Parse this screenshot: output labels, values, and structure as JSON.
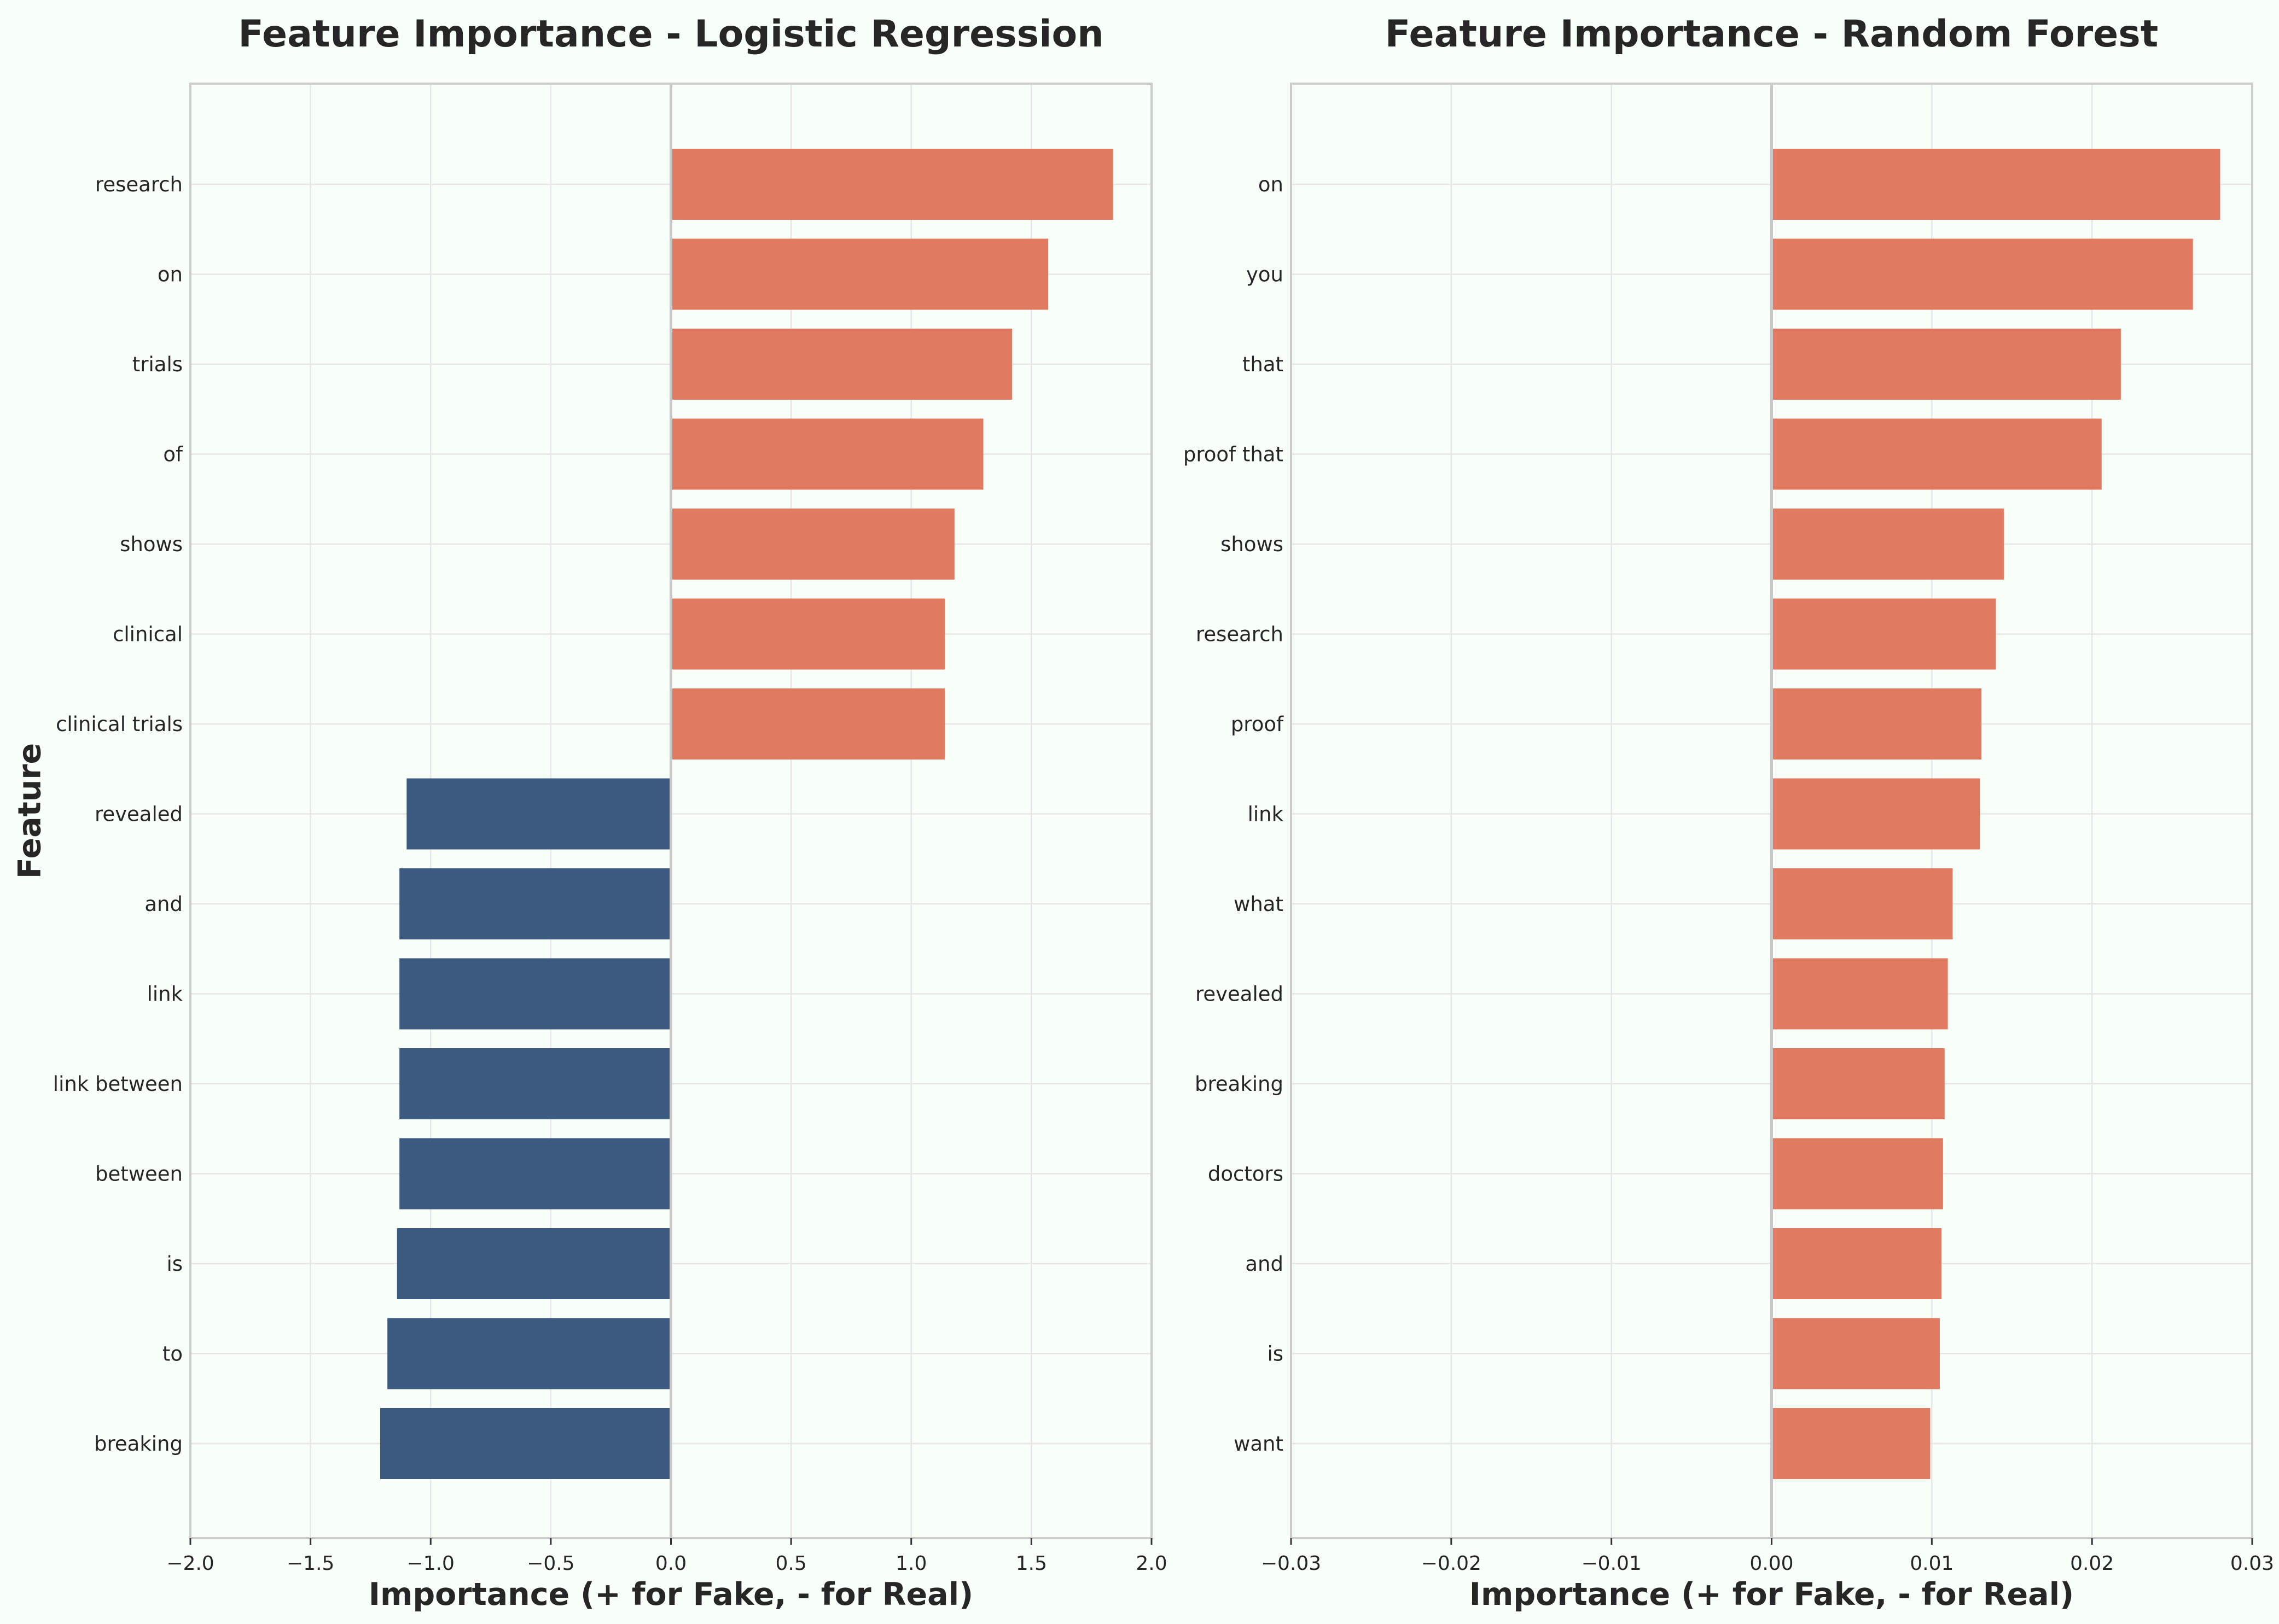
{
  "colors": {
    "positive": "#e07b61",
    "negative": "#3d5a80",
    "background": "#f8fff8"
  },
  "chart_data": [
    {
      "type": "bar",
      "orientation": "horizontal",
      "title": "Feature Importance - Logistic Regression",
      "xlabel": "Importance (+ for Fake, - for Real)",
      "ylabel": "Feature",
      "xlim": [
        -2.0,
        2.0
      ],
      "xticks": [
        -2.0,
        -1.5,
        -1.0,
        -0.5,
        0.0,
        0.5,
        1.0,
        1.5,
        2.0
      ],
      "xtick_labels": [
        "−2.0",
        "−1.5",
        "−1.0",
        "−0.5",
        "0.0",
        "0.5",
        "1.0",
        "1.5",
        "2.0"
      ],
      "grid": true,
      "categories": [
        "research",
        "on",
        "trials",
        "of",
        "shows",
        "clinical",
        "clinical trials",
        "revealed",
        "and",
        "link",
        "link between",
        "between",
        "is",
        "to",
        "breaking"
      ],
      "values": [
        1.84,
        1.57,
        1.42,
        1.3,
        1.18,
        1.14,
        1.14,
        -1.1,
        -1.13,
        -1.13,
        -1.13,
        -1.13,
        -1.14,
        -1.18,
        -1.21
      ]
    },
    {
      "type": "bar",
      "orientation": "horizontal",
      "title": "Feature Importance - Random Forest",
      "xlabel": "Importance (+ for Fake, - for Real)",
      "ylabel": "",
      "xlim": [
        -0.03,
        0.03
      ],
      "xticks": [
        -0.03,
        -0.02,
        -0.01,
        0.0,
        0.01,
        0.02,
        0.03
      ],
      "xtick_labels": [
        "−0.03",
        "−0.02",
        "−0.01",
        "0.00",
        "0.01",
        "0.02",
        "0.03"
      ],
      "grid": true,
      "categories": [
        "on",
        "you",
        "that",
        "proof that",
        "shows",
        "research",
        "proof",
        "link",
        "what",
        "revealed",
        "breaking",
        "doctors",
        "and",
        "is",
        "want"
      ],
      "values": [
        0.028,
        0.0263,
        0.0218,
        0.0206,
        0.0145,
        0.014,
        0.0131,
        0.013,
        0.0113,
        0.011,
        0.0108,
        0.0107,
        0.0106,
        0.0105,
        0.0099
      ]
    }
  ]
}
